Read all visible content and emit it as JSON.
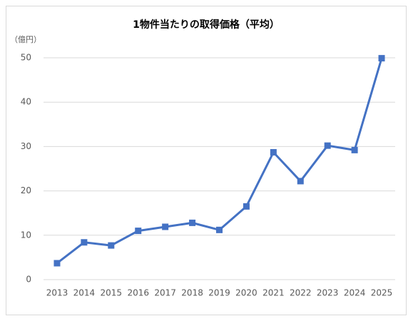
{
  "chart_data": {
    "type": "line",
    "title": "1物件当たりの取得価格（平均）",
    "y_unit": "（億円）",
    "categories": [
      "2013",
      "2014",
      "2015",
      "2016",
      "2017",
      "2018",
      "2019",
      "2020",
      "2021",
      "2022",
      "2023",
      "2024",
      "2025"
    ],
    "series": [
      {
        "color": "#4472c4",
        "values": [
          3.7,
          8.4,
          7.7,
          11.0,
          11.9,
          12.8,
          11.2,
          16.5,
          28.7,
          22.2,
          30.2,
          29.2,
          49.9
        ]
      }
    ],
    "ylim": [
      0,
      50
    ],
    "yticks": [
      0,
      10,
      20,
      30,
      40,
      50
    ],
    "grid": true
  }
}
